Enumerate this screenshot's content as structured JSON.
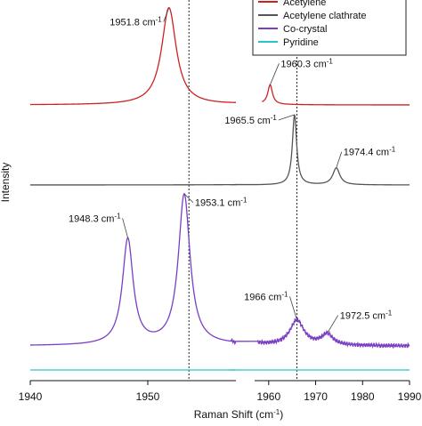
{
  "chart_data": {
    "type": "line",
    "title": "",
    "xlabel": "Raman Shift (cm",
    "xlabel_sup": "-1",
    "xlabel_end": ")",
    "ylabel": "Intensity",
    "x_break": true,
    "panels": [
      {
        "xlim": [
          1940,
          1957.5
        ],
        "ticks": [
          1940,
          1950
        ]
      },
      {
        "xlim": [
          1957,
          1990
        ],
        "ticks": [
          1960,
          1970,
          1980,
          1990
        ]
      }
    ],
    "grid": false,
    "legend": {
      "placement": "top-right",
      "entries": [
        {
          "name": "Acetylene",
          "color": "#cc2222"
        },
        {
          "name": "Acetylene clathrate",
          "color": "#555555"
        },
        {
          "name": "Co-crystal",
          "color": "#7a3fc4"
        },
        {
          "name": "Pyridine",
          "color": "#2bc4c4"
        }
      ]
    },
    "vlines": [
      1953.5,
      1966
    ],
    "series": [
      {
        "name": "Acetylene",
        "color": "#cc2222",
        "baseline": 1,
        "peaks": [
          {
            "x": 1951.8,
            "height": 1.15,
            "width": 0.75
          },
          {
            "x": 1960.3,
            "height": 0.23,
            "width": 0.6
          }
        ]
      },
      {
        "name": "Acetylene clathrate",
        "color": "#555555",
        "baseline": 0,
        "peaks": [
          {
            "x": 1965.5,
            "height": 0.83,
            "width": 0.55
          },
          {
            "x": 1974.4,
            "height": 0.2,
            "width": 0.9
          }
        ]
      },
      {
        "name": "Co-crystal",
        "color": "#7a3fc4",
        "baseline": -2,
        "peaks": [
          {
            "x": 1948.3,
            "height": 1.25,
            "width": 0.55
          },
          {
            "x": 1953.1,
            "height": 1.78,
            "width": 0.6
          },
          {
            "x": 1966,
            "height": 0.3,
            "width": 1.8
          },
          {
            "x": 1972.5,
            "height": 0.13,
            "width": 1.5
          }
        ]
      },
      {
        "name": "Pyridine",
        "color": "#2bc4c4",
        "baseline": -2.25,
        "peaks": []
      }
    ],
    "annotations": [
      {
        "text": "1951.8 cm",
        "sup": "-1",
        "x": 1951.8
      },
      {
        "text": "1960.3 cm",
        "sup": "-1",
        "x": 1960.3
      },
      {
        "text": "1965.5 cm",
        "sup": "-1",
        "x": 1965.5
      },
      {
        "text": "1974.4 cm",
        "sup": "-1",
        "x": 1974.4
      },
      {
        "text": "1948.3 cm",
        "sup": "-1",
        "x": 1948.3
      },
      {
        "text": "1953.1 cm",
        "sup": "-1",
        "x": 1953.1
      },
      {
        "text": "1966 cm",
        "sup": "-1",
        "x": 1966
      },
      {
        "text": "1972.5 cm",
        "sup": "-1",
        "x": 1972.5
      }
    ]
  }
}
